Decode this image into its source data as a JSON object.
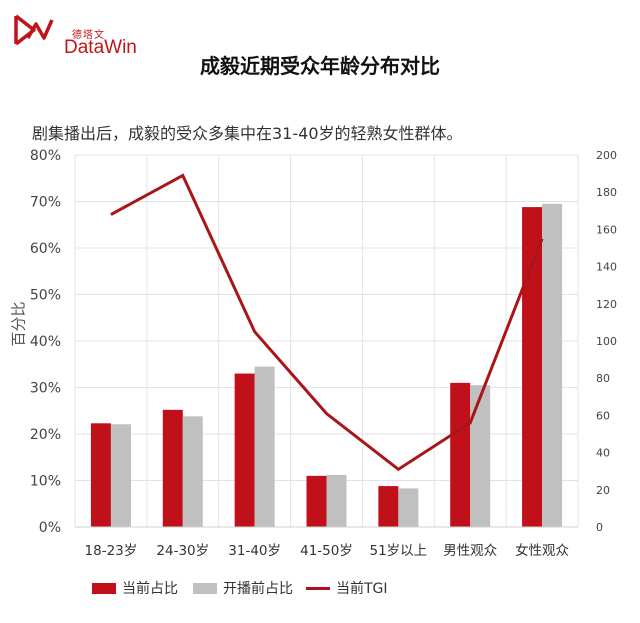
{
  "logo": {
    "cn": "德塔文",
    "en": "DataWin",
    "color": "#c0141b"
  },
  "header": {
    "title": "成毅近期受众年龄分布对比",
    "subtitle": "剧集播出后，成毅的受众多集中在31-40岁的轻熟女性群体。"
  },
  "chart_data": {
    "type": "bar",
    "title": "成毅近期受众年龄分布对比",
    "ylabel": "百分比",
    "categories": [
      "18-23岁",
      "24-30岁",
      "31-40岁",
      "41-50岁",
      "51岁以上",
      "男性观众",
      "女性观众"
    ],
    "ylim": [
      0,
      80
    ],
    "yticks": [
      "0%",
      "10%",
      "20%",
      "30%",
      "40%",
      "50%",
      "60%",
      "70%",
      "80%"
    ],
    "y2lim": [
      0,
      200
    ],
    "y2ticks": [
      "0",
      "20",
      "40",
      "60",
      "80",
      "100",
      "120",
      "140",
      "160",
      "180",
      "200"
    ],
    "grid": true,
    "legend_position": "bottom",
    "series": [
      {
        "name": "当前占比",
        "kind": "bar",
        "axis": "left",
        "color": "#c0111b",
        "values": [
          22.3,
          25.2,
          33.0,
          11.0,
          8.8,
          31.0,
          68.8
        ]
      },
      {
        "name": "开播前占比",
        "kind": "bar",
        "axis": "left",
        "color": "#c0c0c0",
        "values": [
          22.1,
          23.8,
          34.5,
          11.2,
          8.3,
          30.5,
          69.5
        ]
      },
      {
        "name": "当前TGI",
        "kind": "line",
        "axis": "right",
        "color": "#a91518",
        "values": [
          168,
          189,
          105,
          61,
          31,
          56,
          155
        ]
      }
    ]
  }
}
